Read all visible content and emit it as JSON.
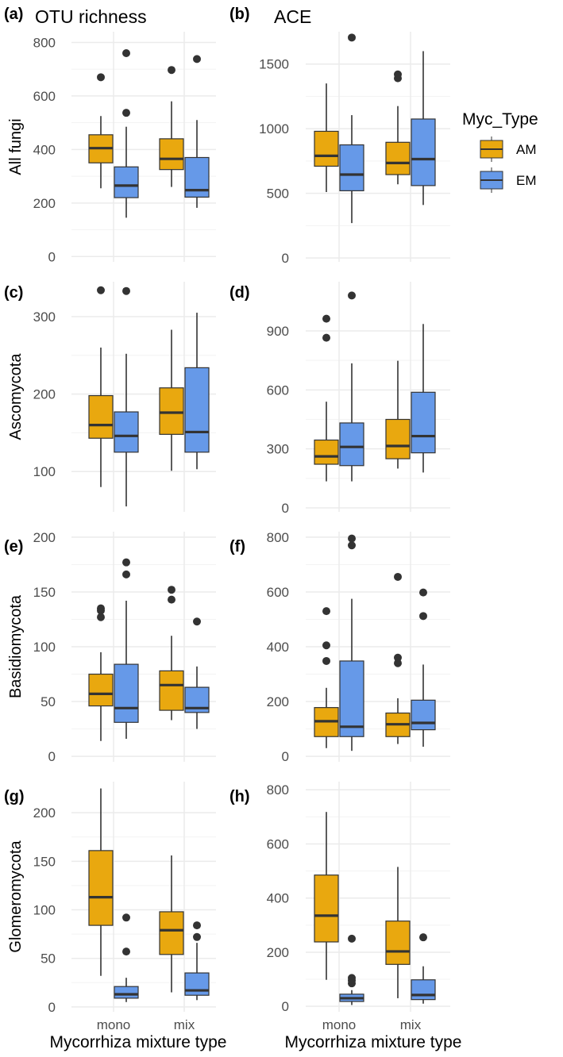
{
  "colors": {
    "AM": "#E9A80F",
    "EM": "#6699E8",
    "line": "#333333",
    "grid": "#EBEBEB",
    "text": "#4D4D4D"
  },
  "x_title": "Mycorrhiza mixture type",
  "legend": {
    "title": "Myc_Type",
    "entries": [
      "AM",
      "EM"
    ],
    "position": "right"
  },
  "chart_data": [
    {
      "type": "boxplot",
      "label": "(a)",
      "title": "OTU richness",
      "row_label": "All fungi",
      "categories": [
        "mono",
        "mix"
      ],
      "ylim": [
        -20,
        840
      ],
      "yticks": [
        0,
        200,
        400,
        600,
        800
      ],
      "series": [
        {
          "name": "AM",
          "boxes": [
            {
              "min": 255,
              "q1": 350,
              "median": 405,
              "q3": 455,
              "max": 525,
              "outliers": [
                670
              ]
            },
            {
              "min": 260,
              "q1": 325,
              "median": 365,
              "q3": 440,
              "max": 580,
              "outliers": [
                697
              ]
            }
          ]
        },
        {
          "name": "EM",
          "boxes": [
            {
              "min": 145,
              "q1": 220,
              "median": 265,
              "q3": 335,
              "max": 485,
              "outliers": [
                537,
                760
              ]
            },
            {
              "min": 182,
              "q1": 222,
              "median": 248,
              "q3": 370,
              "max": 510,
              "outliers": [
                738
              ]
            }
          ]
        }
      ]
    },
    {
      "type": "boxplot",
      "label": "(b)",
      "title": "ACE",
      "row_label": "",
      "categories": [
        "mono",
        "mix"
      ],
      "ylim": [
        -30,
        1750
      ],
      "yticks": [
        0,
        500,
        1000,
        1500
      ],
      "series": [
        {
          "name": "AM",
          "boxes": [
            {
              "min": 510,
              "q1": 710,
              "median": 790,
              "q3": 980,
              "max": 1350,
              "outliers": []
            },
            {
              "min": 570,
              "q1": 645,
              "median": 735,
              "q3": 895,
              "max": 1175,
              "outliers": [
                1390,
                1420
              ]
            }
          ]
        },
        {
          "name": "EM",
          "boxes": [
            {
              "min": 270,
              "q1": 520,
              "median": 645,
              "q3": 875,
              "max": 1105,
              "outliers": [
                1705
              ]
            },
            {
              "min": 410,
              "q1": 560,
              "median": 765,
              "q3": 1075,
              "max": 1600,
              "outliers": []
            }
          ]
        }
      ]
    },
    {
      "type": "boxplot",
      "label": "(c)",
      "title": "",
      "row_label": "Ascomycota",
      "categories": [
        "mono",
        "mix"
      ],
      "ylim": [
        48,
        345
      ],
      "yticks": [
        100,
        200,
        300
      ],
      "series": [
        {
          "name": "AM",
          "boxes": [
            {
              "min": 80,
              "q1": 143,
              "median": 160,
              "q3": 198,
              "max": 260,
              "outliers": [
                334
              ]
            },
            {
              "min": 101,
              "q1": 148,
              "median": 176,
              "q3": 208,
              "max": 283,
              "outliers": []
            }
          ]
        },
        {
          "name": "EM",
          "boxes": [
            {
              "min": 55,
              "q1": 125,
              "median": 146,
              "q3": 177,
              "max": 252,
              "outliers": [
                333
              ]
            },
            {
              "min": 103,
              "q1": 125,
              "median": 151,
              "q3": 234,
              "max": 305,
              "outliers": []
            }
          ]
        }
      ]
    },
    {
      "type": "boxplot",
      "label": "(d)",
      "title": "",
      "row_label": "",
      "categories": [
        "mono",
        "mix"
      ],
      "ylim": [
        -20,
        1150
      ],
      "yticks": [
        0,
        300,
        600,
        900
      ],
      "series": [
        {
          "name": "AM",
          "boxes": [
            {
              "min": 135,
              "q1": 222,
              "median": 262,
              "q3": 345,
              "max": 540,
              "outliers": [
                865,
                962
              ]
            },
            {
              "min": 200,
              "q1": 250,
              "median": 315,
              "q3": 450,
              "max": 748,
              "outliers": []
            }
          ]
        },
        {
          "name": "EM",
          "boxes": [
            {
              "min": 135,
              "q1": 215,
              "median": 310,
              "q3": 432,
              "max": 735,
              "outliers": [
                1080
              ]
            },
            {
              "min": 180,
              "q1": 280,
              "median": 365,
              "q3": 588,
              "max": 935,
              "outliers": []
            }
          ]
        }
      ]
    },
    {
      "type": "boxplot",
      "label": "(e)",
      "title": "",
      "row_label": "Basidiomycota",
      "categories": [
        "mono",
        "mix"
      ],
      "ylim": [
        -5,
        205
      ],
      "yticks": [
        0,
        50,
        100,
        150,
        200
      ],
      "series": [
        {
          "name": "AM",
          "boxes": [
            {
              "min": 14,
              "q1": 46,
              "median": 57,
              "q3": 75,
              "max": 95,
              "outliers": [
                127,
                133,
                135
              ]
            },
            {
              "min": 33,
              "q1": 42,
              "median": 65,
              "q3": 78,
              "max": 110,
              "outliers": [
                143,
                152
              ]
            }
          ]
        },
        {
          "name": "EM",
          "boxes": [
            {
              "min": 16,
              "q1": 31,
              "median": 44,
              "q3": 84,
              "max": 142,
              "outliers": [
                166,
                177
              ]
            },
            {
              "min": 25,
              "q1": 40,
              "median": 44,
              "q3": 63,
              "max": 82,
              "outliers": [
                123
              ]
            }
          ]
        }
      ]
    },
    {
      "type": "boxplot",
      "label": "(f)",
      "title": "",
      "row_label": "",
      "categories": [
        "mono",
        "mix"
      ],
      "ylim": [
        -20,
        820
      ],
      "yticks": [
        0,
        200,
        400,
        600,
        800
      ],
      "series": [
        {
          "name": "AM",
          "boxes": [
            {
              "min": 30,
              "q1": 72,
              "median": 128,
              "q3": 178,
              "max": 250,
              "outliers": [
                348,
                405,
                530
              ]
            },
            {
              "min": 45,
              "q1": 72,
              "median": 117,
              "q3": 158,
              "max": 212,
              "outliers": [
                340,
                360,
                655
              ]
            }
          ]
        },
        {
          "name": "EM",
          "boxes": [
            {
              "min": 20,
              "q1": 72,
              "median": 108,
              "q3": 348,
              "max": 575,
              "outliers": [
                770,
                795
              ]
            },
            {
              "min": 35,
              "q1": 97,
              "median": 122,
              "q3": 205,
              "max": 335,
              "outliers": [
                512,
                598
              ]
            }
          ]
        }
      ]
    },
    {
      "type": "boxplot",
      "label": "(g)",
      "title": "",
      "row_label": "Glomeromycota",
      "categories": [
        "mono",
        "mix"
      ],
      "ylim": [
        -5,
        232
      ],
      "yticks": [
        0,
        50,
        100,
        150,
        200
      ],
      "series": [
        {
          "name": "AM",
          "boxes": [
            {
              "min": 32,
              "q1": 84,
              "median": 113,
              "q3": 161,
              "max": 225,
              "outliers": []
            },
            {
              "min": 15,
              "q1": 54,
              "median": 79,
              "q3": 98,
              "max": 156,
              "outliers": []
            }
          ]
        },
        {
          "name": "EM",
          "boxes": [
            {
              "min": 5,
              "q1": 9,
              "median": 13,
              "q3": 21,
              "max": 30,
              "outliers": [
                57,
                92
              ]
            },
            {
              "min": 7,
              "q1": 12,
              "median": 17,
              "q3": 35,
              "max": 66,
              "outliers": [
                72,
                84
              ]
            }
          ]
        }
      ]
    },
    {
      "type": "boxplot",
      "label": "(h)",
      "title": "",
      "row_label": "",
      "categories": [
        "mono",
        "mix"
      ],
      "ylim": [
        -20,
        830
      ],
      "yticks": [
        0,
        200,
        400,
        600,
        800
      ],
      "series": [
        {
          "name": "AM",
          "boxes": [
            {
              "min": 98,
              "q1": 238,
              "median": 335,
              "q3": 485,
              "max": 718,
              "outliers": []
            },
            {
              "min": 30,
              "q1": 155,
              "median": 203,
              "q3": 315,
              "max": 515,
              "outliers": []
            }
          ]
        },
        {
          "name": "EM",
          "boxes": [
            {
              "min": 5,
              "q1": 18,
              "median": 30,
              "q3": 45,
              "max": 60,
              "outliers": [
                85,
                95,
                105,
                250
              ]
            },
            {
              "min": 10,
              "q1": 25,
              "median": 42,
              "q3": 98,
              "max": 148,
              "outliers": [
                255
              ]
            }
          ]
        }
      ]
    }
  ]
}
